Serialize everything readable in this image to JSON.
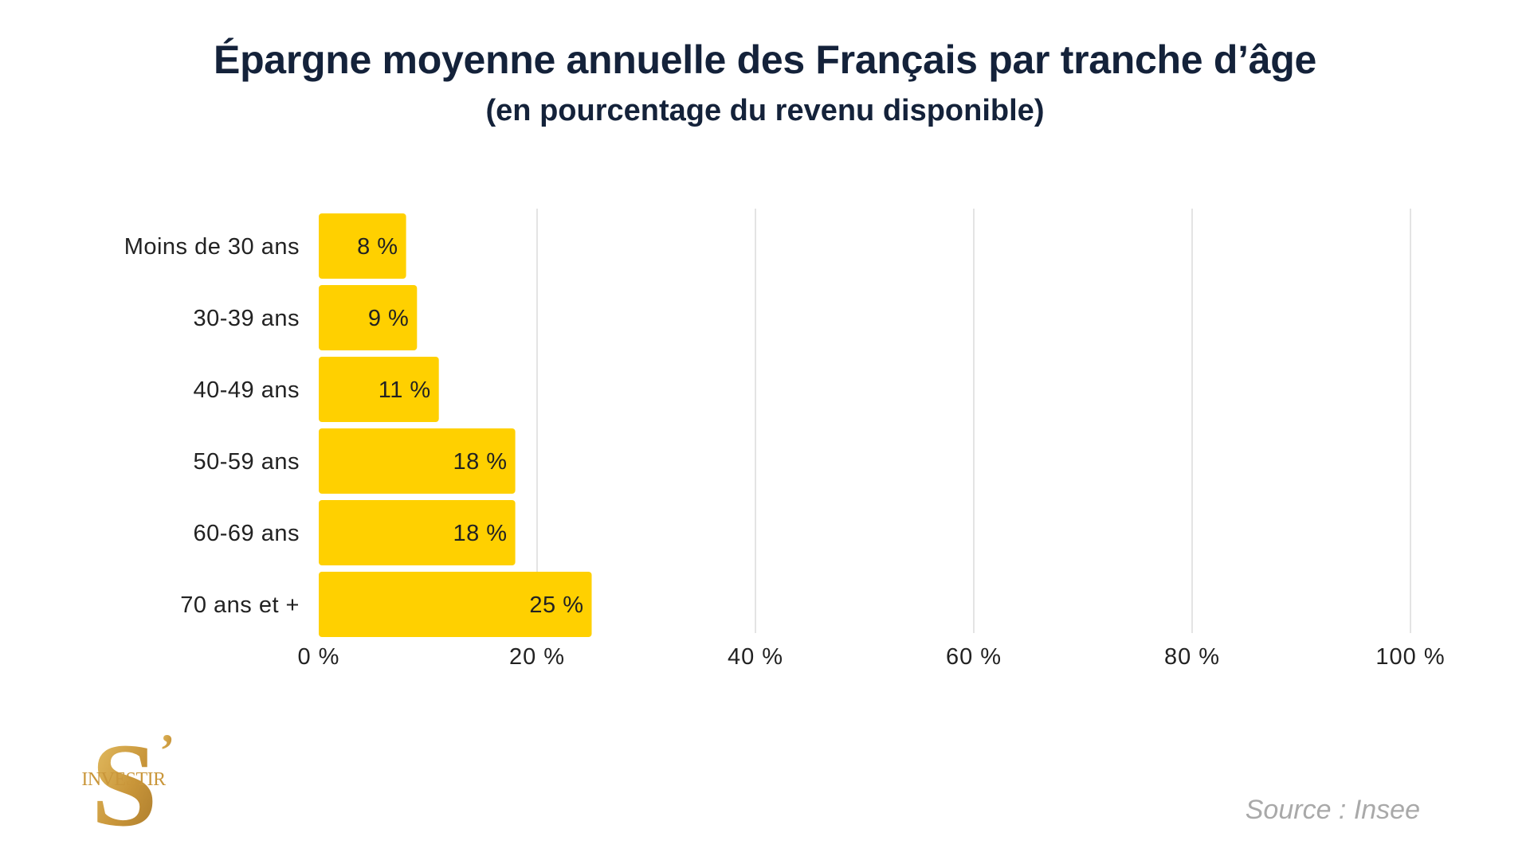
{
  "title": "Épargne moyenne annuelle des Français par tranche d’âge",
  "subtitle": "(en pourcentage du revenu disponible)",
  "source": "Source : Insee",
  "logo": {
    "letter": "S",
    "apostrophe": "’",
    "text": "INVESTIR"
  },
  "colors": {
    "bar": "#FFD000",
    "title": "#14223a",
    "grid": "#dcdcdc",
    "text": "#222222",
    "logo_gold": "#c9963a"
  },
  "chart_data": {
    "type": "bar",
    "orientation": "horizontal",
    "title": "Épargne moyenne annuelle des Français par tranche d’âge",
    "subtitle": "(en pourcentage du revenu disponible)",
    "categories": [
      "Moins de 30 ans",
      "30-39 ans",
      "40-49 ans",
      "50-59 ans",
      "60-69 ans",
      "70 ans et +"
    ],
    "values": [
      8,
      9,
      11,
      18,
      18,
      25
    ],
    "value_labels": [
      "8 %",
      "9 %",
      "11 %",
      "18 %",
      "18 %",
      "25 %"
    ],
    "xlim": [
      0,
      100
    ],
    "xticks": [
      0,
      20,
      40,
      60,
      80,
      100
    ],
    "xtick_labels": [
      "0 %",
      "20 %",
      "40 %",
      "60 %",
      "80 %",
      "100 %"
    ],
    "grid": true,
    "legend": "none"
  }
}
